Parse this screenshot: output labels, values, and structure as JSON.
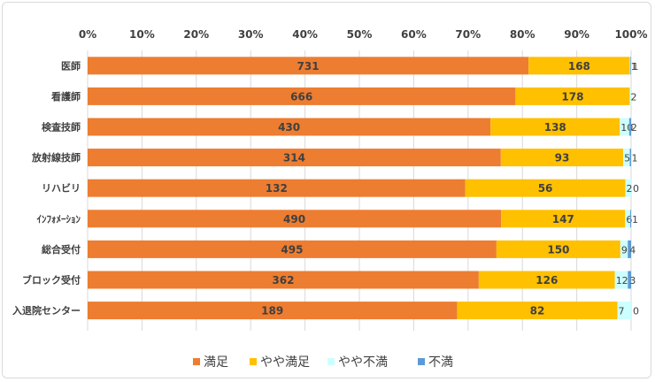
{
  "chart_data": {
    "type": "bar",
    "orientation": "horizontal",
    "stacked": "percent",
    "xlim": [
      0,
      100
    ],
    "x_ticks": [
      "0%",
      "10%",
      "20%",
      "30%",
      "40%",
      "50%",
      "60%",
      "70%",
      "80%",
      "90%",
      "100%"
    ],
    "categories": [
      "医師",
      "看護師",
      "検査技師",
      "放射線技師",
      "リハビリ",
      "ｲﾝﾌｫﾒｰｼｮﾝ",
      "総合受付",
      "ブロック受付",
      "入退院センター"
    ],
    "series": [
      {
        "name": "満足",
        "color": "#ED7D31",
        "values": [
          731,
          666,
          430,
          314,
          132,
          490,
          495,
          362,
          189
        ]
      },
      {
        "name": "やや満足",
        "color": "#FFC000",
        "values": [
          168,
          178,
          138,
          93,
          56,
          147,
          150,
          126,
          82
        ]
      },
      {
        "name": "やや不満",
        "color": "#CCFFFF",
        "values": [
          1,
          2,
          10,
          5,
          2,
          6,
          9,
          12,
          7
        ]
      },
      {
        "name": "不満",
        "color": "#5B9BD5",
        "values": [
          1,
          0,
          2,
          1,
          0,
          1,
          4,
          3,
          0
        ]
      }
    ],
    "data_labels": [
      [
        "731",
        "168",
        "1",
        "1"
      ],
      [
        "666",
        "178",
        "2",
        ""
      ],
      [
        "430",
        "138",
        "10",
        "2"
      ],
      [
        "314",
        "93",
        "5",
        "1"
      ],
      [
        "132",
        "56",
        "2",
        "0"
      ],
      [
        "490",
        "147",
        "6",
        "1"
      ],
      [
        "495",
        "150",
        "9",
        "4"
      ],
      [
        "362",
        "126",
        "12",
        "3"
      ],
      [
        "189",
        "82",
        "7",
        "0"
      ]
    ],
    "legend_position": "bottom",
    "grid": true
  }
}
